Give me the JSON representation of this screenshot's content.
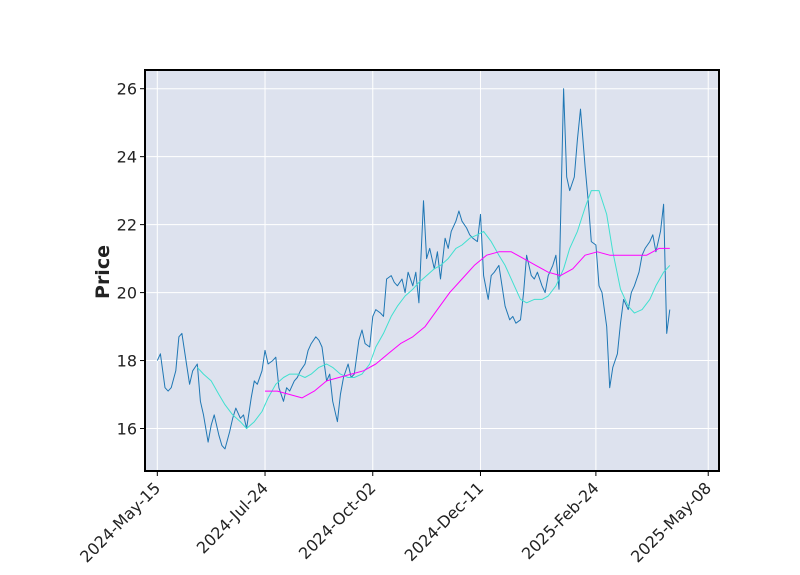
{
  "chart_data": {
    "type": "line",
    "xlabel": "",
    "ylabel": "Price",
    "ylim": [
      14.75,
      26.55
    ],
    "xlim": [
      "2024-05-07",
      "2025-05-15"
    ],
    "grid": true,
    "legend": "none",
    "x_ticks": [
      {
        "date": "2024-05-15",
        "label": "2024-May-15"
      },
      {
        "date": "2024-07-24",
        "label": "2024-Jul-24"
      },
      {
        "date": "2024-10-02",
        "label": "2024-Oct-02"
      },
      {
        "date": "2024-12-11",
        "label": "2024-Dec-11"
      },
      {
        "date": "2025-02-24",
        "label": "2025-Feb-24"
      },
      {
        "date": "2025-05-08",
        "label": "2025-May-08"
      }
    ],
    "y_ticks": [
      16,
      18,
      20,
      22,
      24,
      26
    ],
    "colors": {
      "plot_background": "#dde2ee",
      "grid": "#ffffff",
      "frame": "#000000",
      "close": "#1f77b4",
      "ma_short": "#40e0d0",
      "ma_long": "#ff00ff"
    },
    "series": [
      {
        "key": "close",
        "points": [
          [
            "2024-05-15",
            18.0
          ],
          [
            "2024-05-17",
            18.2
          ],
          [
            "2024-05-20",
            17.2
          ],
          [
            "2024-05-22",
            17.1
          ],
          [
            "2024-05-24",
            17.2
          ],
          [
            "2024-05-27",
            17.7
          ],
          [
            "2024-05-29",
            18.7
          ],
          [
            "2024-05-31",
            18.8
          ],
          [
            "2024-06-03",
            17.9
          ],
          [
            "2024-06-05",
            17.3
          ],
          [
            "2024-06-07",
            17.7
          ],
          [
            "2024-06-10",
            17.9
          ],
          [
            "2024-06-12",
            16.8
          ],
          [
            "2024-06-14",
            16.4
          ],
          [
            "2024-06-17",
            15.6
          ],
          [
            "2024-06-19",
            16.1
          ],
          [
            "2024-06-21",
            16.4
          ],
          [
            "2024-06-24",
            15.8
          ],
          [
            "2024-06-26",
            15.5
          ],
          [
            "2024-06-28",
            15.4
          ],
          [
            "2024-07-01",
            15.9
          ],
          [
            "2024-07-03",
            16.3
          ],
          [
            "2024-07-05",
            16.6
          ],
          [
            "2024-07-08",
            16.3
          ],
          [
            "2024-07-10",
            16.4
          ],
          [
            "2024-07-12",
            16.0
          ],
          [
            "2024-07-15",
            16.9
          ],
          [
            "2024-07-17",
            17.4
          ],
          [
            "2024-07-19",
            17.3
          ],
          [
            "2024-07-22",
            17.7
          ],
          [
            "2024-07-24",
            18.3
          ],
          [
            "2024-07-26",
            17.9
          ],
          [
            "2024-07-29",
            18.0
          ],
          [
            "2024-07-31",
            18.1
          ],
          [
            "2024-08-02",
            17.2
          ],
          [
            "2024-08-05",
            16.8
          ],
          [
            "2024-08-07",
            17.2
          ],
          [
            "2024-08-09",
            17.1
          ],
          [
            "2024-08-12",
            17.4
          ],
          [
            "2024-08-14",
            17.5
          ],
          [
            "2024-08-16",
            17.7
          ],
          [
            "2024-08-19",
            17.9
          ],
          [
            "2024-08-21",
            18.3
          ],
          [
            "2024-08-23",
            18.5
          ],
          [
            "2024-08-26",
            18.7
          ],
          [
            "2024-08-28",
            18.6
          ],
          [
            "2024-08-30",
            18.4
          ],
          [
            "2024-09-02",
            17.4
          ],
          [
            "2024-09-04",
            17.6
          ],
          [
            "2024-09-06",
            16.8
          ],
          [
            "2024-09-09",
            16.2
          ],
          [
            "2024-09-11",
            17.0
          ],
          [
            "2024-09-13",
            17.5
          ],
          [
            "2024-09-16",
            17.9
          ],
          [
            "2024-09-18",
            17.5
          ],
          [
            "2024-09-20",
            17.6
          ],
          [
            "2024-09-23",
            18.6
          ],
          [
            "2024-09-25",
            18.9
          ],
          [
            "2024-09-27",
            18.5
          ],
          [
            "2024-09-30",
            18.4
          ],
          [
            "2024-10-02",
            19.3
          ],
          [
            "2024-10-04",
            19.5
          ],
          [
            "2024-10-07",
            19.4
          ],
          [
            "2024-10-09",
            19.3
          ],
          [
            "2024-10-11",
            20.4
          ],
          [
            "2024-10-14",
            20.5
          ],
          [
            "2024-10-16",
            20.3
          ],
          [
            "2024-10-18",
            20.2
          ],
          [
            "2024-10-21",
            20.4
          ],
          [
            "2024-10-23",
            20.0
          ],
          [
            "2024-10-25",
            20.6
          ],
          [
            "2024-10-28",
            20.2
          ],
          [
            "2024-10-30",
            20.6
          ],
          [
            "2024-11-01",
            19.7
          ],
          [
            "2024-11-04",
            22.7
          ],
          [
            "2024-11-06",
            21.0
          ],
          [
            "2024-11-08",
            21.3
          ],
          [
            "2024-11-11",
            20.7
          ],
          [
            "2024-11-13",
            21.2
          ],
          [
            "2024-11-15",
            20.4
          ],
          [
            "2024-11-18",
            21.6
          ],
          [
            "2024-11-20",
            21.3
          ],
          [
            "2024-11-22",
            21.8
          ],
          [
            "2024-11-25",
            22.1
          ],
          [
            "2024-11-27",
            22.4
          ],
          [
            "2024-11-29",
            22.1
          ],
          [
            "2024-12-02",
            21.9
          ],
          [
            "2024-12-04",
            21.7
          ],
          [
            "2024-12-06",
            21.6
          ],
          [
            "2024-12-09",
            21.5
          ],
          [
            "2024-12-11",
            22.3
          ],
          [
            "2024-12-13",
            20.5
          ],
          [
            "2024-12-16",
            19.8
          ],
          [
            "2024-12-18",
            20.5
          ],
          [
            "2024-12-20",
            20.6
          ],
          [
            "2024-12-23",
            20.8
          ],
          [
            "2024-12-25",
            20.2
          ],
          [
            "2024-12-27",
            19.6
          ],
          [
            "2024-12-30",
            19.2
          ],
          [
            "2025-01-01",
            19.3
          ],
          [
            "2025-01-03",
            19.1
          ],
          [
            "2025-01-06",
            19.2
          ],
          [
            "2025-01-08",
            20.0
          ],
          [
            "2025-01-10",
            21.1
          ],
          [
            "2025-01-13",
            20.5
          ],
          [
            "2025-01-15",
            20.4
          ],
          [
            "2025-01-17",
            20.6
          ],
          [
            "2025-01-20",
            20.2
          ],
          [
            "2025-01-22",
            20.0
          ],
          [
            "2025-01-24",
            20.5
          ],
          [
            "2025-01-27",
            20.8
          ],
          [
            "2025-01-29",
            21.1
          ],
          [
            "2025-01-31",
            20.1
          ],
          [
            "2025-02-03",
            26.0
          ],
          [
            "2025-02-05",
            23.4
          ],
          [
            "2025-02-07",
            23.0
          ],
          [
            "2025-02-10",
            23.4
          ],
          [
            "2025-02-12",
            24.5
          ],
          [
            "2025-02-14",
            25.4
          ],
          [
            "2025-02-17",
            23.7
          ],
          [
            "2025-02-19",
            22.7
          ],
          [
            "2025-02-21",
            21.5
          ],
          [
            "2025-02-24",
            21.4
          ],
          [
            "2025-02-26",
            20.2
          ],
          [
            "2025-02-28",
            20.0
          ],
          [
            "2025-03-03",
            19.0
          ],
          [
            "2025-03-05",
            17.2
          ],
          [
            "2025-03-07",
            17.8
          ],
          [
            "2025-03-10",
            18.2
          ],
          [
            "2025-03-12",
            19.1
          ],
          [
            "2025-03-14",
            19.8
          ],
          [
            "2025-03-17",
            19.5
          ],
          [
            "2025-03-19",
            20.0
          ],
          [
            "2025-03-21",
            20.2
          ],
          [
            "2025-03-24",
            20.6
          ],
          [
            "2025-03-26",
            21.1
          ],
          [
            "2025-03-28",
            21.3
          ],
          [
            "2025-03-31",
            21.5
          ],
          [
            "2025-04-02",
            21.7
          ],
          [
            "2025-04-04",
            21.2
          ],
          [
            "2025-04-07",
            21.8
          ],
          [
            "2025-04-09",
            22.6
          ],
          [
            "2025-04-11",
            18.8
          ],
          [
            "2025-04-13",
            19.5
          ]
        ]
      },
      {
        "key": "ma_short",
        "points": [
          [
            "2024-06-10",
            17.8
          ],
          [
            "2024-06-14",
            17.6
          ],
          [
            "2024-06-19",
            17.4
          ],
          [
            "2024-06-24",
            17.0
          ],
          [
            "2024-06-28",
            16.7
          ],
          [
            "2024-07-03",
            16.4
          ],
          [
            "2024-07-08",
            16.2
          ],
          [
            "2024-07-12",
            16.0
          ],
          [
            "2024-07-17",
            16.2
          ],
          [
            "2024-07-22",
            16.5
          ],
          [
            "2024-07-26",
            16.9
          ],
          [
            "2024-07-31",
            17.3
          ],
          [
            "2024-08-05",
            17.5
          ],
          [
            "2024-08-09",
            17.6
          ],
          [
            "2024-08-14",
            17.6
          ],
          [
            "2024-08-19",
            17.5
          ],
          [
            "2024-08-23",
            17.6
          ],
          [
            "2024-08-28",
            17.8
          ],
          [
            "2024-09-02",
            17.9
          ],
          [
            "2024-09-06",
            17.8
          ],
          [
            "2024-09-11",
            17.6
          ],
          [
            "2024-09-16",
            17.5
          ],
          [
            "2024-09-20",
            17.5
          ],
          [
            "2024-09-25",
            17.6
          ],
          [
            "2024-09-30",
            17.9
          ],
          [
            "2024-10-04",
            18.4
          ],
          [
            "2024-10-09",
            18.8
          ],
          [
            "2024-10-14",
            19.3
          ],
          [
            "2024-10-18",
            19.6
          ],
          [
            "2024-10-23",
            19.9
          ],
          [
            "2024-10-28",
            20.1
          ],
          [
            "2024-11-01",
            20.3
          ],
          [
            "2024-11-06",
            20.5
          ],
          [
            "2024-11-11",
            20.7
          ],
          [
            "2024-11-15",
            20.8
          ],
          [
            "2024-11-20",
            21.0
          ],
          [
            "2024-11-25",
            21.3
          ],
          [
            "2024-11-29",
            21.4
          ],
          [
            "2024-12-04",
            21.6
          ],
          [
            "2024-12-09",
            21.7
          ],
          [
            "2024-12-13",
            21.8
          ],
          [
            "2024-12-18",
            21.5
          ],
          [
            "2024-12-23",
            21.1
          ],
          [
            "2024-12-27",
            20.8
          ],
          [
            "2025-01-01",
            20.3
          ],
          [
            "2025-01-06",
            19.8
          ],
          [
            "2025-01-10",
            19.7
          ],
          [
            "2025-01-15",
            19.8
          ],
          [
            "2025-01-20",
            19.8
          ],
          [
            "2025-01-24",
            19.9
          ],
          [
            "2025-01-29",
            20.2
          ],
          [
            "2025-02-03",
            20.7
          ],
          [
            "2025-02-07",
            21.3
          ],
          [
            "2025-02-12",
            21.8
          ],
          [
            "2025-02-17",
            22.5
          ],
          [
            "2025-02-21",
            23.0
          ],
          [
            "2025-02-26",
            23.0
          ],
          [
            "2025-03-03",
            22.3
          ],
          [
            "2025-03-07",
            21.2
          ],
          [
            "2025-03-12",
            20.1
          ],
          [
            "2025-03-17",
            19.6
          ],
          [
            "2025-03-21",
            19.4
          ],
          [
            "2025-03-26",
            19.5
          ],
          [
            "2025-03-31",
            19.8
          ],
          [
            "2025-04-04",
            20.2
          ],
          [
            "2025-04-09",
            20.6
          ],
          [
            "2025-04-13",
            20.8
          ]
        ]
      },
      {
        "key": "ma_long",
        "points": [
          [
            "2024-07-24",
            17.1
          ],
          [
            "2024-08-01",
            17.1
          ],
          [
            "2024-08-09",
            17.0
          ],
          [
            "2024-08-17",
            16.9
          ],
          [
            "2024-08-25",
            17.1
          ],
          [
            "2024-09-02",
            17.4
          ],
          [
            "2024-09-10",
            17.5
          ],
          [
            "2024-09-18",
            17.6
          ],
          [
            "2024-09-26",
            17.7
          ],
          [
            "2024-10-04",
            17.9
          ],
          [
            "2024-10-12",
            18.2
          ],
          [
            "2024-10-20",
            18.5
          ],
          [
            "2024-10-28",
            18.7
          ],
          [
            "2024-11-05",
            19.0
          ],
          [
            "2024-11-13",
            19.5
          ],
          [
            "2024-11-21",
            20.0
          ],
          [
            "2024-11-29",
            20.4
          ],
          [
            "2024-12-07",
            20.8
          ],
          [
            "2024-12-15",
            21.1
          ],
          [
            "2024-12-23",
            21.2
          ],
          [
            "2024-12-31",
            21.2
          ],
          [
            "2025-01-08",
            21.0
          ],
          [
            "2025-01-16",
            20.8
          ],
          [
            "2025-01-24",
            20.6
          ],
          [
            "2025-02-01",
            20.5
          ],
          [
            "2025-02-09",
            20.7
          ],
          [
            "2025-02-17",
            21.1
          ],
          [
            "2025-02-25",
            21.2
          ],
          [
            "2025-03-05",
            21.1
          ],
          [
            "2025-03-13",
            21.1
          ],
          [
            "2025-03-21",
            21.1
          ],
          [
            "2025-03-29",
            21.1
          ],
          [
            "2025-04-06",
            21.3
          ],
          [
            "2025-04-13",
            21.3
          ]
        ]
      }
    ]
  }
}
